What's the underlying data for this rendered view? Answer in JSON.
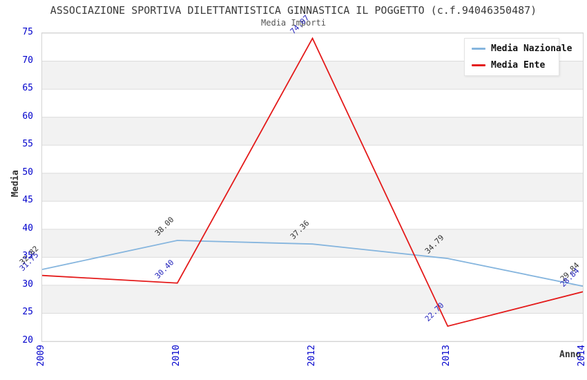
{
  "header": {
    "title": "ASSOCIAZIONE SPORTIVA DILETTANTISTICA GINNASTICA IL POGGETTO (c.f.94046350487)",
    "subtitle": "Media Importi"
  },
  "axes": {
    "y_label": "Media",
    "x_label": "Anno",
    "y_ticks": [
      75,
      70,
      65,
      60,
      55,
      50,
      45,
      40,
      35,
      30,
      25,
      20
    ],
    "x_ticks": [
      "2009",
      "2010",
      "2012",
      "2013",
      "2014"
    ]
  },
  "legend": [
    {
      "label": "Media Nazionale"
    },
    {
      "label": "Media Ente"
    }
  ],
  "colors": {
    "nazionale_line": "#85b5de",
    "ente_line": "#e41a1a",
    "nazionale_point_label": "#333333",
    "ente_point_label": "#2323bb",
    "tick_label": "#0000cc",
    "band_gray": "#f2f2f2",
    "band_white": "#ffffff",
    "gridline": "#dcdcdc",
    "plot_border": "#d4d4d4"
  },
  "chart_data": {
    "type": "line",
    "title": "ASSOCIAZIONE SPORTIVA DILETTANTISTICA GINNASTICA IL POGGETTO (c.f.94046350487)",
    "subtitle": "Media Importi",
    "xlabel": "Anno",
    "ylabel": "Media",
    "categories": [
      "2009",
      "2010",
      "2012",
      "2013",
      "2014"
    ],
    "series": [
      {
        "name": "Media Nazionale",
        "color": "#85b5de",
        "label_color": "#333333",
        "values": [
          32.82,
          38.0,
          37.36,
          34.79,
          29.84
        ]
      },
      {
        "name": "Media Ente",
        "color": "#e41a1a",
        "label_color": "#2323bb",
        "values": [
          31.75,
          30.4,
          74.07,
          22.7,
          28.84
        ]
      }
    ],
    "ylim": [
      20,
      75
    ],
    "grid": true,
    "band_fill": "alternating horizontal gray/white bands every 5 units",
    "point_labels": "values shown rotated 45deg at each point",
    "legend_position": "top-right"
  }
}
